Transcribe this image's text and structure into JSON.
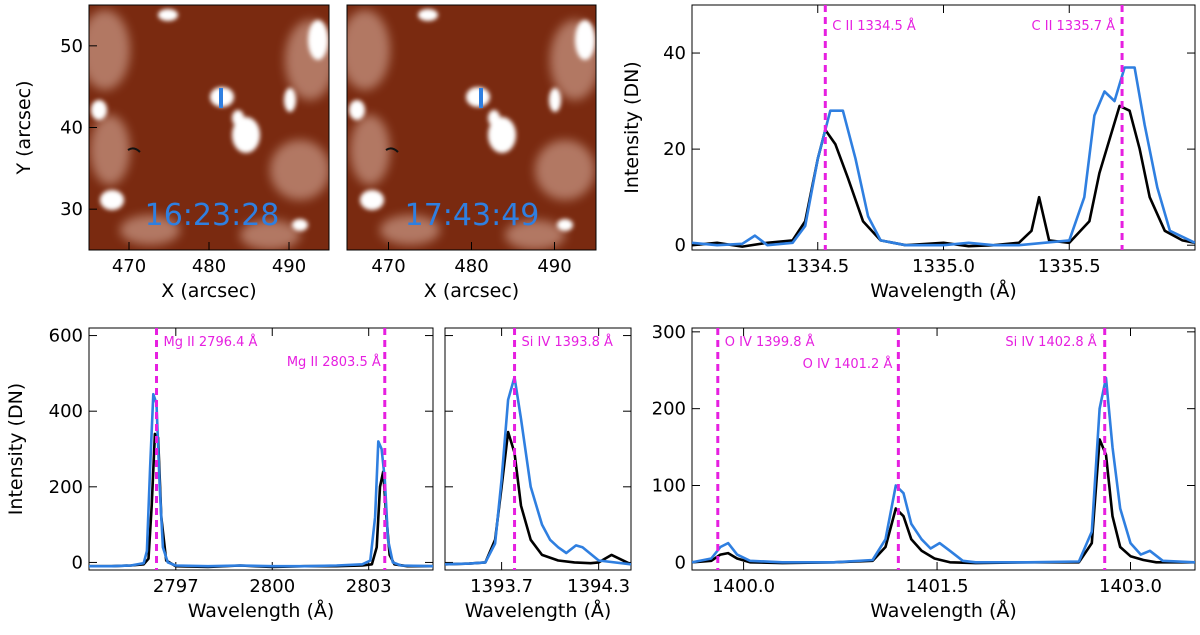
{
  "colors": {
    "series_black": "#000000",
    "series_blue": "#2f7fe0",
    "ref_line": "#e61fe0",
    "image_base": "#7a2a10",
    "image_bright": "#ffffff"
  },
  "images": [
    {
      "time": "16:23:28",
      "xlabel": "X (arcsec)",
      "ylabel": "Y (arcsec)",
      "x_ticks": [
        "470",
        "480",
        "490"
      ],
      "y_ticks": [
        "30",
        "40",
        "50"
      ],
      "xlim": [
        465,
        495
      ],
      "ylim": [
        25,
        55
      ]
    },
    {
      "time": "17:43:49",
      "xlabel": "X (arcsec)",
      "ylabel": "",
      "x_ticks": [
        "470",
        "480",
        "490"
      ],
      "y_ticks": [],
      "xlim": [
        465,
        495
      ],
      "ylim": [
        25,
        55
      ]
    }
  ],
  "chart_data": [
    {
      "id": "cii",
      "type": "line",
      "xlabel": "Wavelength (Å)",
      "ylabel": "Intensity (DN)",
      "xlim": [
        1334.0,
        1336.0
      ],
      "ylim": [
        -1,
        50
      ],
      "x_ticks": [
        1334.5,
        1335.0,
        1335.5
      ],
      "x_tick_labels": [
        "1334.5",
        "1335.0",
        "1335.5"
      ],
      "y_ticks": [
        0,
        20,
        40
      ],
      "y_tick_labels": [
        "0",
        "20",
        "40"
      ],
      "ref_lines": [
        {
          "x": 1334.53,
          "label": "C II 1334.5 Å"
        },
        {
          "x": 1335.71,
          "label": "C II 1335.7 Å"
        }
      ],
      "series": [
        {
          "color_key": "series_black",
          "x": [
            1334.0,
            1334.1,
            1334.2,
            1334.3,
            1334.4,
            1334.45,
            1334.5,
            1334.53,
            1334.57,
            1334.62,
            1334.68,
            1334.75,
            1334.85,
            1335.0,
            1335.1,
            1335.2,
            1335.3,
            1335.35,
            1335.38,
            1335.42,
            1335.5,
            1335.58,
            1335.62,
            1335.66,
            1335.7,
            1335.74,
            1335.78,
            1335.82,
            1335.88,
            1335.95,
            1336.0
          ],
          "y": [
            0,
            0.5,
            -0.3,
            0.5,
            1,
            5,
            18,
            24,
            21,
            14,
            5,
            1,
            0,
            0.5,
            -0.2,
            0,
            0.5,
            3,
            10,
            1,
            0.5,
            5,
            15,
            22,
            29,
            28,
            20,
            10,
            3,
            1,
            0.5
          ]
        },
        {
          "color_key": "series_blue",
          "x": [
            1334.0,
            1334.1,
            1334.2,
            1334.25,
            1334.3,
            1334.4,
            1334.45,
            1334.5,
            1334.55,
            1334.6,
            1334.65,
            1334.7,
            1334.75,
            1334.85,
            1335.0,
            1335.1,
            1335.2,
            1335.3,
            1335.4,
            1335.5,
            1335.56,
            1335.6,
            1335.64,
            1335.68,
            1335.72,
            1335.76,
            1335.8,
            1335.85,
            1335.9,
            1336.0
          ],
          "y": [
            0.5,
            0,
            0.3,
            2,
            0,
            0.5,
            4,
            18,
            28,
            28,
            18,
            6,
            1,
            0,
            0,
            0.5,
            0,
            0,
            0.5,
            1,
            10,
            27,
            32,
            30,
            37,
            37,
            25,
            12,
            3,
            0.5
          ]
        }
      ]
    },
    {
      "id": "mgii",
      "type": "line",
      "xlabel": "Wavelength (Å)",
      "ylabel": "Intensity (DN)",
      "xlim": [
        2794.3,
        2805.0
      ],
      "ylim": [
        -20,
        620
      ],
      "x_ticks": [
        2797,
        2800,
        2803
      ],
      "x_tick_labels": [
        "2797",
        "2800",
        "2803"
      ],
      "y_ticks": [
        0,
        200,
        400,
        600
      ],
      "y_tick_labels": [
        "0",
        "200",
        "400",
        "600"
      ],
      "ref_lines": [
        {
          "x": 2796.4,
          "label": "Mg II 2796.4 Å"
        },
        {
          "x": 2803.5,
          "label": "Mg II 2803.5 Å"
        }
      ],
      "series": [
        {
          "color_key": "series_black",
          "x": [
            2794.3,
            2795.0,
            2795.6,
            2796.0,
            2796.15,
            2796.25,
            2796.35,
            2796.45,
            2796.55,
            2796.7,
            2797.0,
            2798.0,
            2799.0,
            2800.0,
            2801.0,
            2802.0,
            2802.8,
            2803.1,
            2803.25,
            2803.35,
            2803.45,
            2803.55,
            2803.65,
            2803.8,
            2804.2,
            2805.0
          ],
          "y": [
            -10,
            -10,
            -8,
            -5,
            10,
            150,
            340,
            330,
            120,
            5,
            -10,
            -12,
            -8,
            -12,
            -10,
            -10,
            -8,
            -5,
            40,
            200,
            240,
            120,
            20,
            -5,
            -10,
            -10
          ]
        },
        {
          "color_key": "series_blue",
          "x": [
            2794.3,
            2795.0,
            2795.6,
            2796.0,
            2796.1,
            2796.2,
            2796.3,
            2796.4,
            2796.5,
            2796.6,
            2796.75,
            2797.0,
            2798.0,
            2799.0,
            2800.0,
            2801.0,
            2802.0,
            2802.8,
            2803.05,
            2803.2,
            2803.3,
            2803.4,
            2803.5,
            2803.6,
            2803.75,
            2804.0,
            2805.0
          ],
          "y": [
            -10,
            -10,
            -8,
            -2,
            30,
            250,
            445,
            420,
            200,
            40,
            0,
            -8,
            -10,
            -8,
            -10,
            -10,
            -8,
            -5,
            5,
            120,
            320,
            300,
            220,
            60,
            0,
            -8,
            -10
          ]
        }
      ]
    },
    {
      "id": "siiv1393",
      "type": "line",
      "xlabel": "Wavelength (Å)",
      "ylabel": "",
      "xlim": [
        1393.35,
        1394.5
      ],
      "ylim": [
        -20,
        620
      ],
      "x_ticks": [
        1393.7,
        1394.3
      ],
      "x_tick_labels": [
        "1393.7",
        "1394.3"
      ],
      "y_ticks": [
        0,
        200,
        400,
        600
      ],
      "y_tick_labels": [],
      "ref_lines": [
        {
          "x": 1393.78,
          "label": "Si IV 1393.8 Å"
        }
      ],
      "series": [
        {
          "color_key": "series_black",
          "x": [
            1393.35,
            1393.5,
            1393.6,
            1393.66,
            1393.7,
            1393.74,
            1393.78,
            1393.82,
            1393.88,
            1393.95,
            1394.05,
            1394.15,
            1394.25,
            1394.3,
            1394.38,
            1394.5
          ],
          "y": [
            -5,
            -3,
            0,
            60,
            200,
            345,
            290,
            150,
            60,
            20,
            5,
            0,
            -2,
            0,
            20,
            -5
          ]
        },
        {
          "color_key": "series_blue",
          "x": [
            1393.35,
            1393.5,
            1393.6,
            1393.66,
            1393.7,
            1393.74,
            1393.78,
            1393.82,
            1393.88,
            1393.95,
            1394.0,
            1394.05,
            1394.1,
            1394.16,
            1394.2,
            1394.3,
            1394.5
          ],
          "y": [
            -5,
            -3,
            0,
            50,
            220,
            430,
            490,
            380,
            200,
            100,
            60,
            40,
            25,
            45,
            40,
            5,
            -5
          ]
        }
      ]
    },
    {
      "id": "oiv",
      "type": "line",
      "xlabel": "Wavelength (Å)",
      "ylabel": "",
      "xlim": [
        1399.6,
        1403.5
      ],
      "ylim": [
        -10,
        305
      ],
      "x_ticks": [
        1400.0,
        1401.5,
        1403.0
      ],
      "x_tick_labels": [
        "1400.0",
        "1401.5",
        "1403.0"
      ],
      "y_ticks": [
        0,
        100,
        200,
        300
      ],
      "y_tick_labels": [
        "0",
        "100",
        "200",
        "300"
      ],
      "ref_lines": [
        {
          "x": 1399.8,
          "label": "O IV 1399.8 Å"
        },
        {
          "x": 1401.2,
          "label": "O IV 1401.2 Å"
        },
        {
          "x": 1402.8,
          "label": "Si IV 1402.8 Å"
        }
      ],
      "series": [
        {
          "color_key": "series_black",
          "x": [
            1399.6,
            1399.75,
            1399.82,
            1399.88,
            1399.95,
            1400.05,
            1400.3,
            1400.7,
            1401.0,
            1401.1,
            1401.18,
            1401.24,
            1401.3,
            1401.38,
            1401.48,
            1401.6,
            1401.8,
            1402.2,
            1402.6,
            1402.7,
            1402.76,
            1402.81,
            1402.86,
            1402.92,
            1403.0,
            1403.1,
            1403.2,
            1403.5
          ],
          "y": [
            0,
            2,
            10,
            12,
            5,
            0,
            -1,
            0,
            2,
            20,
            70,
            60,
            30,
            15,
            5,
            0,
            -1,
            0,
            0,
            25,
            160,
            140,
            60,
            20,
            8,
            3,
            0,
            0
          ]
        },
        {
          "color_key": "series_blue",
          "x": [
            1399.6,
            1399.75,
            1399.82,
            1399.88,
            1399.95,
            1400.05,
            1400.3,
            1400.7,
            1401.0,
            1401.1,
            1401.18,
            1401.24,
            1401.3,
            1401.38,
            1401.45,
            1401.52,
            1401.6,
            1401.7,
            1401.8,
            1402.2,
            1402.6,
            1402.7,
            1402.76,
            1402.81,
            1402.86,
            1402.92,
            1403.0,
            1403.08,
            1403.15,
            1403.25,
            1403.5
          ],
          "y": [
            0,
            5,
            20,
            25,
            10,
            2,
            0,
            0,
            3,
            30,
            100,
            90,
            50,
            30,
            18,
            25,
            15,
            2,
            0,
            0,
            1,
            40,
            200,
            240,
            150,
            70,
            25,
            10,
            15,
            2,
            0
          ]
        }
      ]
    }
  ]
}
